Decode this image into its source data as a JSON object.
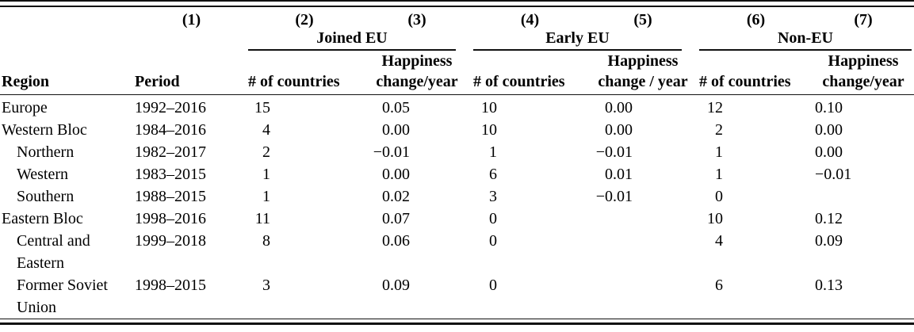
{
  "table": {
    "column_numbers": [
      "(1)",
      "(2)",
      "(3)",
      "(4)",
      "(5)",
      "(6)",
      "(7)"
    ],
    "groups": [
      {
        "label": "Joined EU",
        "count_header": "# of countries",
        "change_header_line1": "Happiness",
        "change_header_line2": "change/year"
      },
      {
        "label": "Early EU",
        "count_header": "# of countries",
        "change_header_line1": "Happiness",
        "change_header_line2": "change / year"
      },
      {
        "label": "Non-EU",
        "count_header": "# of countries",
        "change_header_line1": "Happiness",
        "change_header_line2": "change/year"
      }
    ],
    "row_headers": {
      "region": "Region",
      "period": "Period"
    },
    "rows": [
      {
        "region": "Europe",
        "level": 0,
        "period": "1992–2016",
        "c2": "15",
        "c3": "0.05",
        "c4": "10",
        "c5": "0.00",
        "c6": "12",
        "c7": "0.10"
      },
      {
        "region": "Western Bloc",
        "level": 0,
        "period": "1984–2016",
        "c2": "4",
        "c3": "0.00",
        "c4": "10",
        "c5": "0.00",
        "c6": "2",
        "c7": "0.00"
      },
      {
        "region": "Northern",
        "level": 1,
        "period": "1982–2017",
        "c2": "2",
        "c3": "−0.01",
        "c4": "1",
        "c5": "−0.01",
        "c6": "1",
        "c7": "0.00"
      },
      {
        "region": "Western",
        "level": 1,
        "period": "1983–2015",
        "c2": "1",
        "c3": "0.00",
        "c4": "6",
        "c5": "0.01",
        "c6": "1",
        "c7": "−0.01"
      },
      {
        "region": "Southern",
        "level": 1,
        "period": "1988–2015",
        "c2": "1",
        "c3": "0.02",
        "c4": "3",
        "c5": "−0.01",
        "c6": "0",
        "c7": ""
      },
      {
        "region": "Eastern Bloc",
        "level": 0,
        "period": "1998–2016",
        "c2": "11",
        "c3": "0.07",
        "c4": "0",
        "c5": "",
        "c6": "10",
        "c7": "0.12"
      },
      {
        "region": "Central and Eastern",
        "level": 1,
        "period": "1999–2018",
        "c2": "8",
        "c3": "0.06",
        "c4": "0",
        "c5": "",
        "c6": "4",
        "c7": "0.09"
      },
      {
        "region": "Former Soviet Union",
        "level": 1,
        "period": "1998–2015",
        "c2": "3",
        "c3": "0.09",
        "c4": "0",
        "c5": "",
        "c6": "6",
        "c7": "0.13"
      }
    ]
  }
}
